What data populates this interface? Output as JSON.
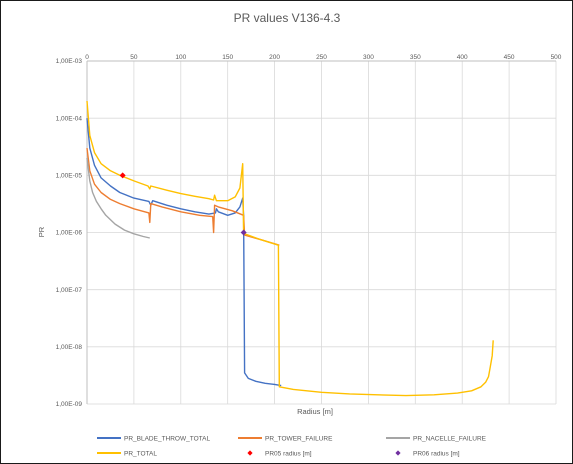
{
  "chart_data": {
    "type": "line",
    "title": "PR values V136-4.3",
    "xlabel": "Radius [m]",
    "ylabel": "PR",
    "xlim": [
      0,
      500
    ],
    "ylim": [
      1e-09,
      0.001
    ],
    "y_scale": "log",
    "x_ticks": [
      0,
      50,
      100,
      150,
      200,
      250,
      300,
      350,
      400,
      450,
      500
    ],
    "x_tick_labels": [
      "0",
      "50",
      "100",
      "150",
      "200",
      "250",
      "300",
      "350",
      "400",
      "450",
      "500"
    ],
    "y_ticks": [
      0.001,
      0.0001,
      1e-05,
      1e-06,
      1e-07,
      1e-08,
      1e-09
    ],
    "y_tick_labels": [
      "1,00E-03",
      "1,00E-04",
      "1,00E-05",
      "1,00E-06",
      "1,00E-07",
      "1,00E-08",
      "1,00E-09"
    ],
    "x_axis_position": "top",
    "grid": true,
    "legend_position": "bottom",
    "series": [
      {
        "name": "PR_BLADE_THROW_TOTAL",
        "color": "#4472c4",
        "style": "line",
        "points": [
          [
            0,
            0.0001
          ],
          [
            3,
            3e-05
          ],
          [
            8,
            1.5e-05
          ],
          [
            15,
            9e-06
          ],
          [
            25,
            6.5e-06
          ],
          [
            35,
            5e-06
          ],
          [
            50,
            4e-06
          ],
          [
            66,
            3.5e-06
          ],
          [
            68,
            3e-06
          ],
          [
            70,
            3.6e-06
          ],
          [
            85,
            3e-06
          ],
          [
            100,
            2.6e-06
          ],
          [
            115,
            2.3e-06
          ],
          [
            130,
            2.1e-06
          ],
          [
            137,
            2.2e-06
          ],
          [
            138,
            2.6e-06
          ],
          [
            140,
            2.3e-06
          ],
          [
            150,
            2e-06
          ],
          [
            158,
            2.2e-06
          ],
          [
            163,
            2.8e-06
          ],
          [
            166,
            4e-06
          ],
          [
            167,
            2e-06
          ],
          [
            168,
            3.5e-09
          ],
          [
            172,
            2.8e-09
          ],
          [
            180,
            2.5e-09
          ],
          [
            190,
            2.3e-09
          ],
          [
            200,
            2.2e-09
          ],
          [
            207,
            2.1e-09
          ]
        ]
      },
      {
        "name": "PR_TOWER_FAILURE",
        "color": "#ed7d31",
        "style": "line",
        "points": [
          [
            0,
            3e-05
          ],
          [
            3,
            1.2e-05
          ],
          [
            8,
            7e-06
          ],
          [
            15,
            5e-06
          ],
          [
            25,
            3.8e-06
          ],
          [
            35,
            3.2e-06
          ],
          [
            50,
            2.6e-06
          ],
          [
            66,
            2.2e-06
          ],
          [
            67,
            1.5e-06
          ],
          [
            68,
            3.2e-06
          ],
          [
            80,
            2.8e-06
          ],
          [
            100,
            2.3e-06
          ],
          [
            120,
            2e-06
          ],
          [
            134,
            1.9e-06
          ],
          [
            135,
            1e-06
          ],
          [
            136,
            3e-06
          ],
          [
            140,
            2.8e-06
          ],
          [
            155,
            2.4e-06
          ],
          [
            167,
            2e-06
          ],
          [
            168,
            9e-07
          ],
          [
            185,
            7.5e-07
          ],
          [
            205,
            6e-07
          ]
        ]
      },
      {
        "name": "PR_NACELLE_FAILURE",
        "color": "#a5a5a5",
        "style": "line",
        "points": [
          [
            0,
            2e-05
          ],
          [
            3,
            8e-06
          ],
          [
            6,
            5e-06
          ],
          [
            10,
            3.5e-06
          ],
          [
            15,
            2.6e-06
          ],
          [
            20,
            2e-06
          ],
          [
            30,
            1.4e-06
          ],
          [
            40,
            1.1e-06
          ],
          [
            50,
            9.5e-07
          ],
          [
            60,
            8.5e-07
          ],
          [
            67,
            8e-07
          ]
        ]
      },
      {
        "name": "PR_TOTAL",
        "color": "#ffc000",
        "style": "line",
        "points": [
          [
            0,
            0.0002
          ],
          [
            3,
            5e-05
          ],
          [
            8,
            2.5e-05
          ],
          [
            15,
            1.6e-05
          ],
          [
            25,
            1.2e-05
          ],
          [
            35,
            1e-05
          ],
          [
            50,
            8e-06
          ],
          [
            65,
            6.5e-06
          ],
          [
            67,
            5.8e-06
          ],
          [
            68,
            6.5e-06
          ],
          [
            85,
            5.5e-06
          ],
          [
            100,
            4.8e-06
          ],
          [
            115,
            4.3e-06
          ],
          [
            130,
            3.9e-06
          ],
          [
            135,
            3.7e-06
          ],
          [
            136,
            4.5e-06
          ],
          [
            138,
            3.6e-06
          ],
          [
            150,
            3.6e-06
          ],
          [
            158,
            4.2e-06
          ],
          [
            163,
            6e-06
          ],
          [
            166,
            1.6e-05
          ],
          [
            167,
            1e-06
          ],
          [
            168,
            9.5e-07
          ],
          [
            185,
            7.5e-07
          ],
          [
            204,
            6e-07
          ],
          [
            205,
            2e-09
          ],
          [
            220,
            1.8e-09
          ],
          [
            250,
            1.6e-09
          ],
          [
            280,
            1.5e-09
          ],
          [
            310,
            1.45e-09
          ],
          [
            340,
            1.4e-09
          ],
          [
            370,
            1.45e-09
          ],
          [
            395,
            1.55e-09
          ],
          [
            410,
            1.7e-09
          ],
          [
            420,
            2e-09
          ],
          [
            425,
            2.4e-09
          ],
          [
            428,
            3e-09
          ],
          [
            430,
            4.5e-09
          ],
          [
            432,
            7e-09
          ],
          [
            433,
            1.3e-08
          ]
        ]
      },
      {
        "name": "PR05 radius [m]",
        "color": "#ff0000",
        "style": "marker",
        "marker": "diamond",
        "points": [
          [
            38,
            1e-05
          ]
        ]
      },
      {
        "name": "PR06 radius [m]",
        "color": "#7030a0",
        "style": "marker",
        "marker": "diamond",
        "points": [
          [
            167,
            1e-06
          ]
        ]
      }
    ]
  }
}
